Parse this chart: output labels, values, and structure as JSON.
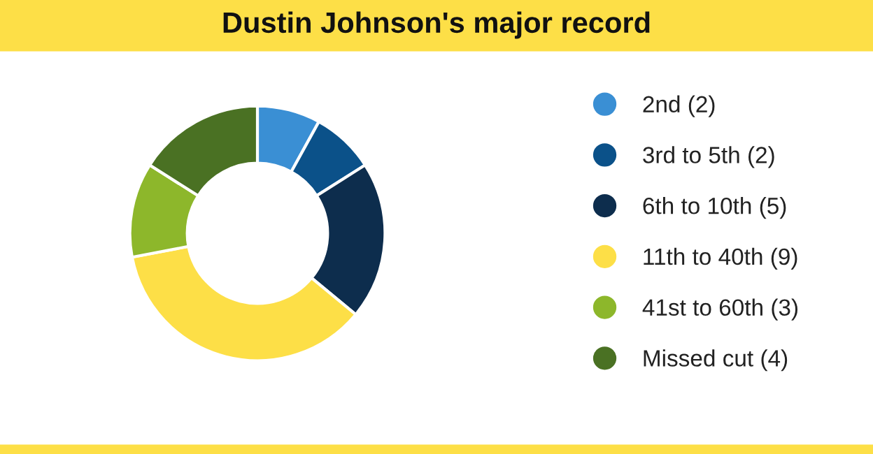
{
  "chart_data": {
    "type": "donut",
    "title": "Dustin Johnson's major record",
    "categories": [
      "2nd (2)",
      "3rd to 5th (2)",
      "6th to 10th (5)",
      "11th to 40th (9)",
      "41st to 60th (3)",
      "Missed cut (4)"
    ],
    "values": [
      2,
      2,
      5,
      9,
      3,
      4
    ],
    "colors": [
      "#3a8fd4",
      "#0b5189",
      "#0d2d4d",
      "#fddf47",
      "#8db72b",
      "#4a7123"
    ],
    "legend": "right"
  }
}
